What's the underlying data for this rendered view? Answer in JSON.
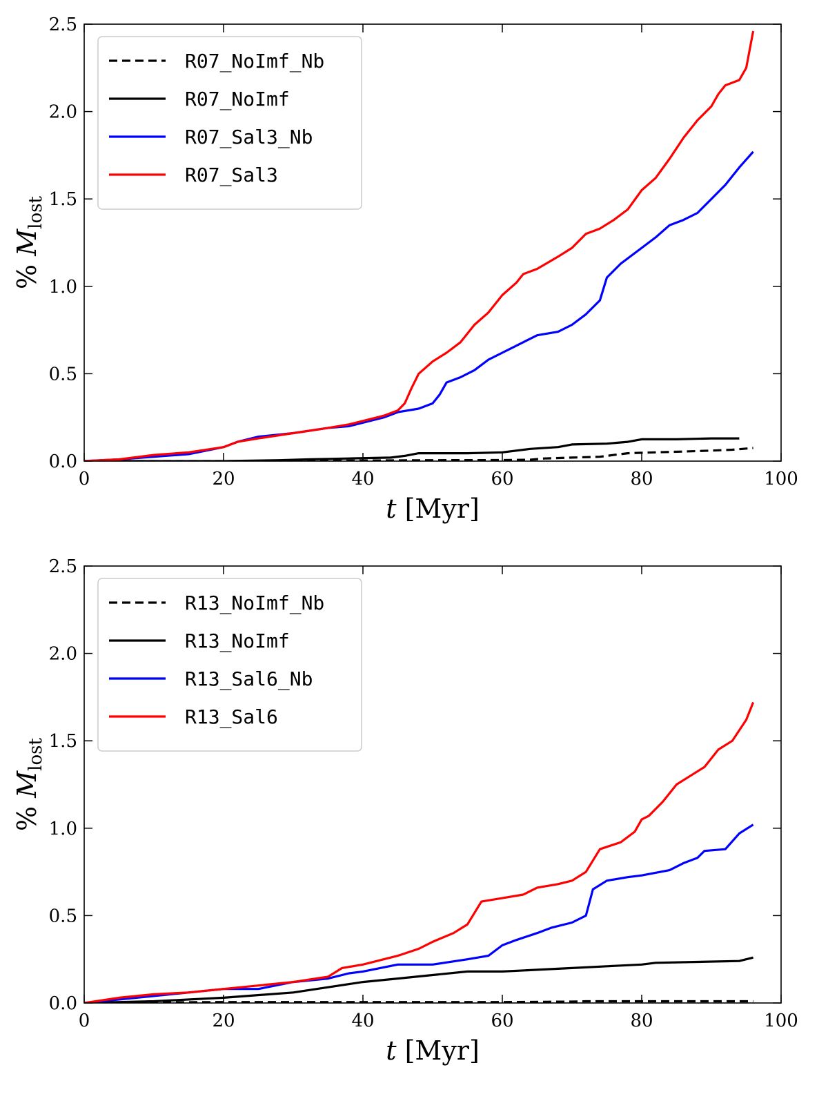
{
  "chart_data": [
    {
      "type": "line",
      "xlabel": "t [Myr]",
      "ylabel": "% M_lost",
      "xlim": [
        0,
        100
      ],
      "ylim": [
        0,
        2.5
      ],
      "xticks": [
        "0",
        "20",
        "40",
        "60",
        "80",
        "100"
      ],
      "yticks": [
        "0.0",
        "0.5",
        "1.0",
        "1.5",
        "2.0",
        "2.5"
      ],
      "legend_position": "upper-left",
      "series": [
        {
          "name": "R07_NoImf_Nb",
          "color": "#000000",
          "style": "dashed",
          "points": [
            [
              0,
              0
            ],
            [
              10,
              0
            ],
            [
              20,
              0
            ],
            [
              30,
              0
            ],
            [
              40,
              0.003
            ],
            [
              50,
              0.005
            ],
            [
              60,
              0.006
            ],
            [
              64,
              0.008
            ],
            [
              66,
              0.015
            ],
            [
              70,
              0.02
            ],
            [
              74,
              0.025
            ],
            [
              76,
              0.035
            ],
            [
              78,
              0.045
            ],
            [
              82,
              0.05
            ],
            [
              86,
              0.055
            ],
            [
              90,
              0.06
            ],
            [
              93,
              0.065
            ],
            [
              96,
              0.075
            ]
          ]
        },
        {
          "name": "R07_NoImf",
          "color": "#000000",
          "style": "solid",
          "points": [
            [
              0,
              0
            ],
            [
              10,
              0
            ],
            [
              20,
              0
            ],
            [
              28,
              0.005
            ],
            [
              32,
              0.01
            ],
            [
              38,
              0.015
            ],
            [
              44,
              0.02
            ],
            [
              46,
              0.03
            ],
            [
              48,
              0.045
            ],
            [
              55,
              0.045
            ],
            [
              60,
              0.05
            ],
            [
              64,
              0.07
            ],
            [
              68,
              0.08
            ],
            [
              70,
              0.095
            ],
            [
              75,
              0.1
            ],
            [
              78,
              0.11
            ],
            [
              80,
              0.125
            ],
            [
              85,
              0.125
            ],
            [
              90,
              0.13
            ],
            [
              94,
              0.13
            ]
          ]
        },
        {
          "name": "R07_Sal3_Nb",
          "color": "#0000ff",
          "style": "solid",
          "points": [
            [
              0,
              0
            ],
            [
              5,
              0.01
            ],
            [
              10,
              0.025
            ],
            [
              15,
              0.04
            ],
            [
              20,
              0.08
            ],
            [
              22,
              0.11
            ],
            [
              25,
              0.14
            ],
            [
              30,
              0.16
            ],
            [
              35,
              0.19
            ],
            [
              38,
              0.2
            ],
            [
              40,
              0.22
            ],
            [
              43,
              0.25
            ],
            [
              45,
              0.28
            ],
            [
              48,
              0.3
            ],
            [
              50,
              0.33
            ],
            [
              51,
              0.38
            ],
            [
              52,
              0.45
            ],
            [
              54,
              0.48
            ],
            [
              56,
              0.52
            ],
            [
              58,
              0.58
            ],
            [
              60,
              0.62
            ],
            [
              63,
              0.68
            ],
            [
              65,
              0.72
            ],
            [
              68,
              0.74
            ],
            [
              70,
              0.78
            ],
            [
              72,
              0.84
            ],
            [
              74,
              0.92
            ],
            [
              75,
              1.05
            ],
            [
              77,
              1.13
            ],
            [
              80,
              1.22
            ],
            [
              82,
              1.28
            ],
            [
              84,
              1.35
            ],
            [
              86,
              1.38
            ],
            [
              88,
              1.42
            ],
            [
              90,
              1.5
            ],
            [
              92,
              1.58
            ],
            [
              94,
              1.68
            ],
            [
              96,
              1.77
            ]
          ]
        },
        {
          "name": "R07_Sal3",
          "color": "#ff0000",
          "style": "solid",
          "points": [
            [
              0,
              0
            ],
            [
              5,
              0.01
            ],
            [
              10,
              0.035
            ],
            [
              15,
              0.05
            ],
            [
              20,
              0.08
            ],
            [
              22,
              0.11
            ],
            [
              25,
              0.13
            ],
            [
              30,
              0.16
            ],
            [
              35,
              0.19
            ],
            [
              38,
              0.21
            ],
            [
              40,
              0.23
            ],
            [
              43,
              0.26
            ],
            [
              45,
              0.29
            ],
            [
              46,
              0.33
            ],
            [
              47,
              0.42
            ],
            [
              48,
              0.5
            ],
            [
              50,
              0.57
            ],
            [
              52,
              0.62
            ],
            [
              54,
              0.68
            ],
            [
              56,
              0.78
            ],
            [
              58,
              0.85
            ],
            [
              60,
              0.95
            ],
            [
              62,
              1.02
            ],
            [
              63,
              1.07
            ],
            [
              65,
              1.1
            ],
            [
              68,
              1.17
            ],
            [
              70,
              1.22
            ],
            [
              72,
              1.3
            ],
            [
              74,
              1.33
            ],
            [
              76,
              1.38
            ],
            [
              78,
              1.44
            ],
            [
              80,
              1.55
            ],
            [
              82,
              1.62
            ],
            [
              84,
              1.73
            ],
            [
              86,
              1.85
            ],
            [
              88,
              1.95
            ],
            [
              90,
              2.03
            ],
            [
              91,
              2.1
            ],
            [
              92,
              2.15
            ],
            [
              94,
              2.18
            ],
            [
              95,
              2.25
            ],
            [
              96,
              2.46
            ]
          ]
        }
      ]
    },
    {
      "type": "line",
      "xlabel": "t [Myr]",
      "ylabel": "% M_lost",
      "xlim": [
        0,
        100
      ],
      "ylim": [
        0,
        2.5
      ],
      "xticks": [
        "0",
        "20",
        "40",
        "60",
        "80",
        "100"
      ],
      "yticks": [
        "0.0",
        "0.5",
        "1.0",
        "1.5",
        "2.0",
        "2.5"
      ],
      "legend_position": "upper-left",
      "series": [
        {
          "name": "R13_NoImf_Nb",
          "color": "#000000",
          "style": "dashed",
          "points": [
            [
              0,
              0
            ],
            [
              10,
              0.003
            ],
            [
              20,
              0.005
            ],
            [
              40,
              0.005
            ],
            [
              60,
              0.005
            ],
            [
              70,
              0.008
            ],
            [
              72,
              0.01
            ],
            [
              96,
              0.01
            ]
          ]
        },
        {
          "name": "R13_NoImf",
          "color": "#000000",
          "style": "solid",
          "points": [
            [
              0,
              0
            ],
            [
              10,
              0.01
            ],
            [
              20,
              0.03
            ],
            [
              30,
              0.06
            ],
            [
              35,
              0.09
            ],
            [
              40,
              0.12
            ],
            [
              45,
              0.14
            ],
            [
              50,
              0.16
            ],
            [
              55,
              0.18
            ],
            [
              60,
              0.18
            ],
            [
              65,
              0.19
            ],
            [
              70,
              0.2
            ],
            [
              75,
              0.21
            ],
            [
              80,
              0.22
            ],
            [
              82,
              0.23
            ],
            [
              88,
              0.235
            ],
            [
              94,
              0.24
            ],
            [
              96,
              0.26
            ]
          ]
        },
        {
          "name": "R13_Sal6_Nb",
          "color": "#0000ff",
          "style": "solid",
          "points": [
            [
              0,
              0
            ],
            [
              5,
              0.02
            ],
            [
              10,
              0.04
            ],
            [
              15,
              0.06
            ],
            [
              20,
              0.08
            ],
            [
              25,
              0.08
            ],
            [
              30,
              0.12
            ],
            [
              35,
              0.14
            ],
            [
              38,
              0.17
            ],
            [
              40,
              0.18
            ],
            [
              45,
              0.22
            ],
            [
              50,
              0.22
            ],
            [
              55,
              0.25
            ],
            [
              58,
              0.27
            ],
            [
              60,
              0.33
            ],
            [
              62,
              0.36
            ],
            [
              65,
              0.4
            ],
            [
              67,
              0.43
            ],
            [
              70,
              0.46
            ],
            [
              72,
              0.5
            ],
            [
              73,
              0.65
            ],
            [
              75,
              0.7
            ],
            [
              78,
              0.72
            ],
            [
              80,
              0.73
            ],
            [
              84,
              0.76
            ],
            [
              86,
              0.8
            ],
            [
              88,
              0.83
            ],
            [
              89,
              0.87
            ],
            [
              92,
              0.88
            ],
            [
              94,
              0.97
            ],
            [
              96,
              1.02
            ]
          ]
        },
        {
          "name": "R13_Sal6",
          "color": "#ff0000",
          "style": "solid",
          "points": [
            [
              0,
              0
            ],
            [
              5,
              0.03
            ],
            [
              10,
              0.05
            ],
            [
              15,
              0.06
            ],
            [
              20,
              0.08
            ],
            [
              25,
              0.1
            ],
            [
              30,
              0.12
            ],
            [
              35,
              0.15
            ],
            [
              37,
              0.2
            ],
            [
              40,
              0.22
            ],
            [
              45,
              0.27
            ],
            [
              48,
              0.31
            ],
            [
              50,
              0.35
            ],
            [
              53,
              0.4
            ],
            [
              55,
              0.45
            ],
            [
              57,
              0.58
            ],
            [
              60,
              0.6
            ],
            [
              63,
              0.62
            ],
            [
              65,
              0.66
            ],
            [
              68,
              0.68
            ],
            [
              70,
              0.7
            ],
            [
              72,
              0.75
            ],
            [
              74,
              0.88
            ],
            [
              77,
              0.92
            ],
            [
              79,
              0.98
            ],
            [
              80,
              1.05
            ],
            [
              81,
              1.07
            ],
            [
              83,
              1.15
            ],
            [
              85,
              1.25
            ],
            [
              87,
              1.3
            ],
            [
              89,
              1.35
            ],
            [
              91,
              1.45
            ],
            [
              93,
              1.5
            ],
            [
              95,
              1.62
            ],
            [
              96,
              1.72
            ]
          ]
        }
      ]
    }
  ]
}
